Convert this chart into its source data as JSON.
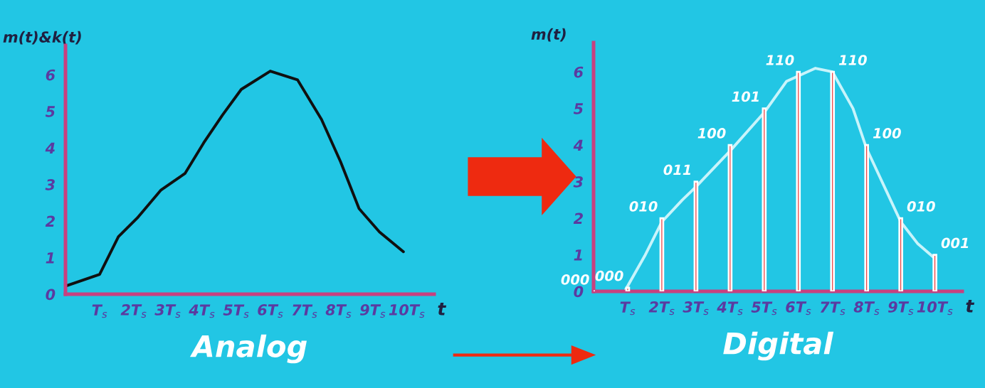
{
  "chart_data": [
    {
      "type": "line",
      "title": "Analog",
      "xlabel": "t",
      "ylabel": "m(t)&k(t)",
      "xlim": [
        0,
        10.8
      ],
      "ylim": [
        0,
        6.8
      ],
      "xticks": [
        {
          "value": 1,
          "label": "T$_{s}$"
        },
        {
          "value": 2,
          "label": "2T$_{s}$"
        },
        {
          "value": 3,
          "label": "3T$_{s}$"
        },
        {
          "value": 4,
          "label": "4T$_{s}$"
        },
        {
          "value": 5,
          "label": "5T$_{s}$"
        },
        {
          "value": 6,
          "label": "6T$_{s}$"
        },
        {
          "value": 7,
          "label": "7T$_{s}$"
        },
        {
          "value": 8,
          "label": "8T$_{s}$"
        },
        {
          "value": 9,
          "label": "9T$_{s}$"
        },
        {
          "value": 10,
          "label": "10T$_{s}$"
        }
      ],
      "yticks": [
        0,
        1,
        2,
        3,
        4,
        5,
        6
      ],
      "grid": false,
      "legend": false,
      "series": [
        {
          "color": "#101010",
          "x": [
            0,
            1.0,
            1.55,
            2.1,
            2.8,
            3.5,
            4.05,
            4.6,
            5.15,
            6.0,
            6.8,
            7.5,
            8.06,
            8.6,
            9.2,
            9.9
          ],
          "values": [
            0.22,
            0.54,
            1.57,
            2.08,
            2.85,
            3.3,
            4.14,
            4.9,
            5.6,
            6.1,
            5.86,
            4.78,
            3.62,
            2.34,
            1.7,
            1.16
          ]
        }
      ]
    },
    {
      "type": "bar",
      "title": "Digital",
      "xlabel": "t",
      "ylabel": "m(t)",
      "xlim": [
        0,
        10.8
      ],
      "ylim": [
        0,
        6.8
      ],
      "xticks": [
        {
          "value": 1,
          "label": "T$_{s}$"
        },
        {
          "value": 2,
          "label": "2T$_{s}$"
        },
        {
          "value": 3,
          "label": "3T$_{s}$"
        },
        {
          "value": 4,
          "label": "4T$_{s}$"
        },
        {
          "value": 5,
          "label": "5T$_{s}$"
        },
        {
          "value": 6,
          "label": "6T$_{s}$"
        },
        {
          "value": 7,
          "label": "7T$_{s}$"
        },
        {
          "value": 8,
          "label": "8T$_{s}$"
        },
        {
          "value": 9,
          "label": "9T$_{s}$"
        },
        {
          "value": 10,
          "label": "10T$_{s}$"
        }
      ],
      "yticks": [
        0,
        1,
        2,
        3,
        4,
        5,
        6
      ],
      "grid": false,
      "legend": false,
      "series": [
        {
          "type": "line",
          "color": "#c8f4fb",
          "x": [
            0.94,
            1.5,
            2.0,
            2.6,
            3.0,
            4.0,
            5.0,
            5.65,
            6.5,
            7.0,
            7.6,
            8.0,
            8.55,
            9.0,
            9.5,
            10.0
          ],
          "values": [
            0.05,
            0.97,
            1.9,
            2.5,
            2.86,
            3.84,
            4.89,
            5.74,
            6.1,
            6.0,
            5.0,
            3.9,
            2.8,
            1.9,
            1.3,
            0.9
          ]
        },
        {
          "color": "#e82020",
          "x": [
            0,
            1,
            2,
            3,
            4,
            5,
            6,
            7,
            8,
            9,
            10
          ],
          "values": [
            0,
            0.1,
            2,
            3,
            4,
            5,
            6,
            6,
            4,
            2,
            1
          ]
        }
      ],
      "annotations": [
        {
          "text": "000",
          "x": 0,
          "y": 0
        },
        {
          "text": "000",
          "x": 1,
          "y": 0.1
        },
        {
          "text": "010",
          "x": 2,
          "y": 2
        },
        {
          "text": "011",
          "x": 3,
          "y": 3
        },
        {
          "text": "100",
          "x": 4,
          "y": 4
        },
        {
          "text": "101",
          "x": 5,
          "y": 5
        },
        {
          "text": "110",
          "x": 6,
          "y": 6
        },
        {
          "text": "110",
          "x": 7,
          "y": 6
        },
        {
          "text": "100",
          "x": 8,
          "y": 4
        },
        {
          "text": "010",
          "x": 9,
          "y": 2
        },
        {
          "text": "001",
          "x": 10,
          "y": 1
        }
      ]
    }
  ]
}
